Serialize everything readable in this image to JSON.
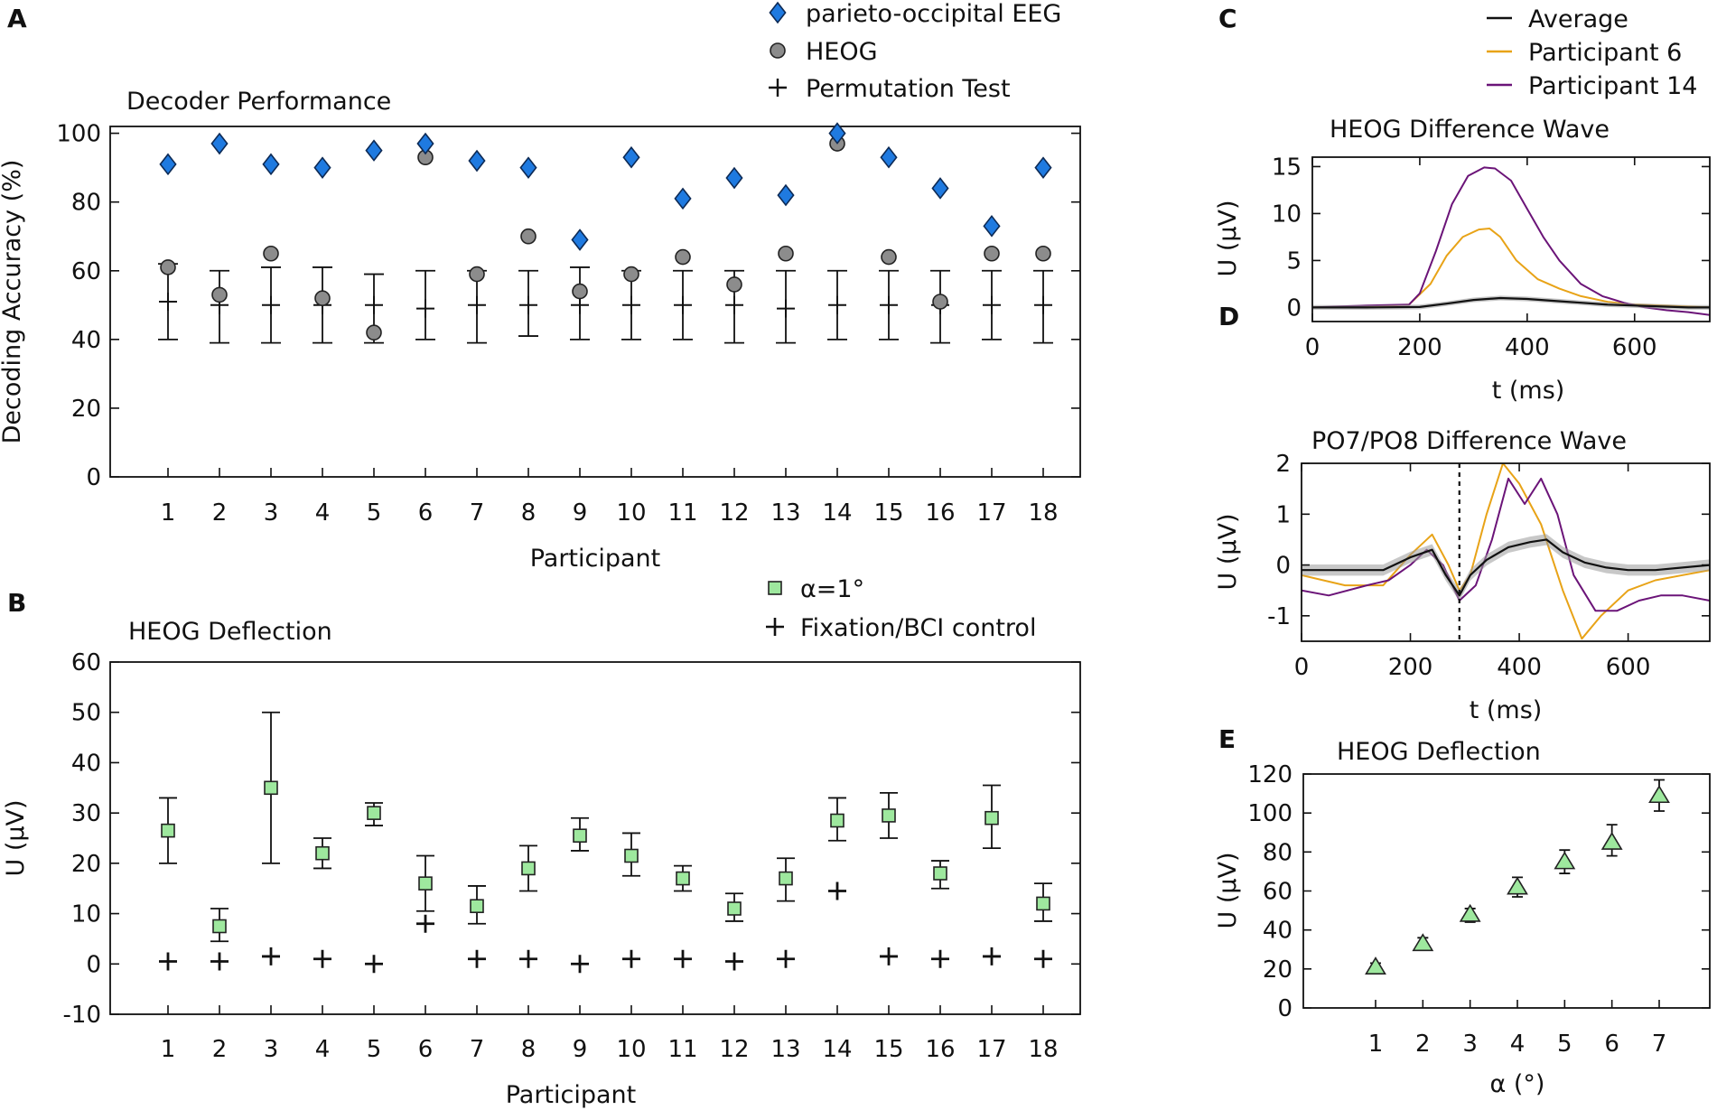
{
  "colors": {
    "eeg": "#1f7ae0",
    "heog": "#8c8c8c",
    "green": "#9ee89e",
    "orange": "#e8a317",
    "purple": "#6b1478",
    "black": "#111111",
    "band": "#9a9a9a"
  },
  "chart_data": [
    {
      "id": "A",
      "type": "scatter",
      "letter": "A",
      "title": "Decoder Performance",
      "xlabel": "Participant",
      "ylabel": "Decoding Accuracy (%)",
      "ylim": [
        0,
        102
      ],
      "yticks": [
        0,
        20,
        40,
        60,
        80,
        100
      ],
      "categories": [
        "1",
        "2",
        "3",
        "4",
        "5",
        "6",
        "7",
        "8",
        "9",
        "10",
        "11",
        "12",
        "13",
        "14",
        "15",
        "16",
        "17",
        "18"
      ],
      "legend": [
        "parieto-occipital EEG",
        "HEOG",
        "Permutation Test"
      ],
      "series": [
        {
          "name": "parieto-occipital EEG",
          "marker": "diamond",
          "values": [
            91,
            97,
            91,
            90,
            95,
            97,
            92,
            90,
            69,
            93,
            81,
            87,
            82,
            100,
            93,
            84,
            73,
            90
          ]
        },
        {
          "name": "HEOG",
          "marker": "circle",
          "values": [
            61,
            53,
            65,
            52,
            42,
            93,
            59,
            70,
            54,
            59,
            64,
            56,
            65,
            97,
            64,
            51,
            65,
            65
          ]
        },
        {
          "name": "Permutation Test",
          "marker": "plus",
          "values": [
            51,
            50,
            50,
            50,
            50,
            49,
            50,
            50,
            50,
            50,
            50,
            50,
            49,
            50,
            50,
            50,
            50,
            50
          ],
          "err_low": [
            40,
            39,
            39,
            39,
            39,
            40,
            39,
            41,
            40,
            40,
            40,
            39,
            39,
            40,
            40,
            39,
            40,
            39
          ],
          "err_high": [
            62,
            60,
            61,
            61,
            59,
            60,
            60,
            60,
            61,
            60,
            60,
            60,
            60,
            60,
            60,
            60,
            60,
            60
          ]
        }
      ]
    },
    {
      "id": "B",
      "type": "scatter",
      "letter": "B",
      "title": "HEOG Deflection",
      "xlabel": "Participant",
      "ylabel": "U (µV)",
      "ylim": [
        -10,
        60
      ],
      "yticks": [
        -10,
        0,
        10,
        20,
        30,
        40,
        50,
        60
      ],
      "categories": [
        "1",
        "2",
        "3",
        "4",
        "5",
        "6",
        "7",
        "8",
        "9",
        "10",
        "11",
        "12",
        "13",
        "14",
        "15",
        "16",
        "17",
        "18"
      ],
      "legend": [
        "α=1°",
        "Fixation/BCI control"
      ],
      "series": [
        {
          "name": "α=1°",
          "marker": "square",
          "values": [
            26.5,
            7.5,
            35,
            22,
            30,
            16,
            11.5,
            19,
            25.5,
            21.5,
            17,
            11,
            17,
            28.5,
            29.5,
            18,
            29,
            12
          ],
          "err_low": [
            20,
            4.5,
            20,
            19,
            27.5,
            10.5,
            8,
            14.5,
            22.5,
            17.5,
            14.5,
            8.5,
            12.5,
            24.5,
            25,
            15,
            23,
            8.5
          ],
          "err_high": [
            33,
            11,
            50,
            25,
            32,
            21.5,
            15.5,
            23.5,
            29,
            26,
            19.5,
            14,
            21,
            33,
            34,
            20.5,
            35.5,
            16
          ]
        },
        {
          "name": "Fixation/BCI control",
          "marker": "plus",
          "values": [
            0.5,
            0.5,
            1.5,
            1,
            0,
            8,
            1,
            1,
            0,
            1,
            1,
            0.5,
            1,
            14.5,
            1.5,
            1,
            1.5,
            1
          ]
        }
      ]
    },
    {
      "id": "C",
      "type": "line",
      "letter": "C",
      "title": "HEOG Difference Wave",
      "xlabel": "t (ms)",
      "ylabel": "U (µV)",
      "xlim": [
        0,
        740
      ],
      "ylim": [
        -1.5,
        16
      ],
      "xticks": [
        0,
        200,
        400,
        600
      ],
      "yticks": [
        0,
        5,
        10,
        15
      ],
      "legend": [
        "Average",
        "Participant 6",
        "Participant 14"
      ],
      "series": [
        {
          "name": "Average",
          "x": [
            0,
            100,
            200,
            250,
            300,
            350,
            400,
            450,
            500,
            550,
            600,
            650,
            700,
            740
          ],
          "y": [
            0,
            0,
            0.05,
            0.4,
            0.8,
            1.0,
            0.9,
            0.7,
            0.5,
            0.3,
            0.2,
            0.1,
            0,
            0
          ]
        },
        {
          "name": "Participant 6",
          "x": [
            0,
            100,
            180,
            220,
            250,
            280,
            310,
            330,
            350,
            380,
            420,
            460,
            500,
            550,
            600,
            650,
            700,
            740
          ],
          "y": [
            0,
            0.1,
            0.3,
            2.5,
            5.5,
            7.5,
            8.3,
            8.4,
            7.5,
            5,
            3,
            2,
            1.2,
            0.6,
            0.3,
            0.2,
            0.1,
            0
          ]
        },
        {
          "name": "Participant 14",
          "x": [
            0,
            100,
            180,
            200,
            230,
            260,
            290,
            320,
            340,
            370,
            400,
            430,
            460,
            500,
            540,
            580,
            620,
            660,
            700,
            740
          ],
          "y": [
            0,
            0.2,
            0.3,
            1.5,
            6,
            11,
            14,
            14.9,
            14.8,
            13.5,
            10.5,
            7.5,
            5,
            2.5,
            1.2,
            0.5,
            0,
            -0.3,
            -0.5,
            -0.8
          ]
        }
      ]
    },
    {
      "id": "D",
      "type": "line",
      "letter": "D",
      "title": "PO7/PO8 Difference Wave",
      "xlabel": "t (ms)",
      "ylabel": "U (µV)",
      "xlim": [
        0,
        750
      ],
      "ylim": [
        -1.5,
        2
      ],
      "xticks": [
        0,
        200,
        400,
        600
      ],
      "yticks": [
        -1,
        0,
        1,
        2
      ],
      "vline": 290,
      "series": [
        {
          "name": "Average",
          "x": [
            0,
            100,
            150,
            200,
            240,
            265,
            290,
            310,
            340,
            380,
            420,
            450,
            480,
            520,
            560,
            600,
            650,
            700,
            750
          ],
          "y": [
            -0.1,
            -0.1,
            -0.1,
            0.15,
            0.3,
            -0.2,
            -0.6,
            -0.2,
            0.1,
            0.35,
            0.45,
            0.5,
            0.25,
            0.05,
            -0.05,
            -0.1,
            -0.1,
            -0.05,
            0
          ]
        },
        {
          "name": "Participant 6",
          "x": [
            0,
            80,
            150,
            200,
            240,
            270,
            290,
            310,
            340,
            370,
            400,
            440,
            480,
            515,
            550,
            600,
            650,
            700,
            750
          ],
          "y": [
            -0.2,
            -0.4,
            -0.4,
            0.2,
            0.6,
            0.0,
            -0.5,
            -0.2,
            1.0,
            2.0,
            1.6,
            0.8,
            -0.5,
            -1.45,
            -1.0,
            -0.5,
            -0.3,
            -0.2,
            -0.1
          ]
        },
        {
          "name": "Participant 14",
          "x": [
            0,
            50,
            120,
            160,
            200,
            230,
            260,
            290,
            320,
            350,
            380,
            410,
            440,
            470,
            500,
            540,
            580,
            620,
            660,
            700,
            750
          ],
          "y": [
            -0.5,
            -0.6,
            -0.4,
            -0.3,
            0.0,
            0.3,
            0.0,
            -0.7,
            -0.4,
            0.5,
            1.7,
            1.2,
            1.7,
            1.0,
            -0.2,
            -0.9,
            -0.9,
            -0.7,
            -0.6,
            -0.6,
            -0.7
          ]
        }
      ]
    },
    {
      "id": "E",
      "type": "scatter",
      "letter": "E",
      "title": "HEOG Deflection",
      "xlabel": "α (°)",
      "ylabel": "U (µV)",
      "ylim": [
        0,
        120
      ],
      "yticks": [
        0,
        20,
        40,
        60,
        80,
        100,
        120
      ],
      "categories": [
        "1",
        "2",
        "3",
        "4",
        "5",
        "6",
        "7"
      ],
      "series": [
        {
          "name": "HEOG deflection",
          "marker": "triangle",
          "values": [
            21,
            33,
            48,
            62,
            75,
            85,
            109
          ],
          "err_low": [
            19,
            30,
            44,
            57,
            69,
            78,
            101
          ],
          "err_high": [
            23,
            36,
            51,
            67,
            81,
            94,
            117
          ]
        }
      ]
    }
  ]
}
